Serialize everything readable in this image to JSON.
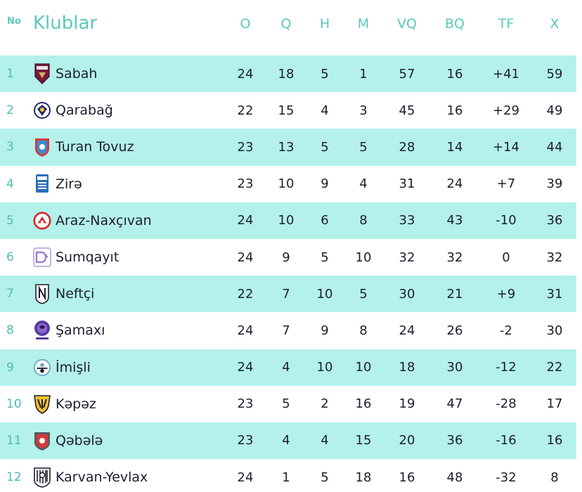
{
  "header": {
    "no": "No",
    "club": "Klublar",
    "o": "O",
    "q": "Q",
    "h": "H",
    "m": "M",
    "vq": "VQ",
    "bq": "BQ",
    "tf": "TF",
    "x": "X"
  },
  "colors": {
    "accent": "#5cc8bc",
    "row_highlight": "#b3f1ea",
    "text": "#1e1e2e"
  },
  "rows": [
    {
      "pos": "1",
      "club": "Sabah",
      "logo": "sabah-logo-icon",
      "o": "24",
      "q": "18",
      "h": "5",
      "m": "1",
      "vq": "57",
      "bq": "16",
      "tf": "+41",
      "x": "59"
    },
    {
      "pos": "2",
      "club": "Qarabağ",
      "logo": "qarabag-logo-icon",
      "o": "22",
      "q": "15",
      "h": "4",
      "m": "3",
      "vq": "45",
      "bq": "16",
      "tf": "+29",
      "x": "49"
    },
    {
      "pos": "3",
      "club": "Turan Tovuz",
      "logo": "turan-tovuz-logo-icon",
      "o": "23",
      "q": "13",
      "h": "5",
      "m": "5",
      "vq": "28",
      "bq": "14",
      "tf": "+14",
      "x": "44"
    },
    {
      "pos": "4",
      "club": "Zirə",
      "logo": "zire-logo-icon",
      "o": "23",
      "q": "10",
      "h": "9",
      "m": "4",
      "vq": "31",
      "bq": "24",
      "tf": "+7",
      "x": "39"
    },
    {
      "pos": "5",
      "club": "Araz-Naxçıvan",
      "logo": "araz-naxcivan-logo-icon",
      "o": "24",
      "q": "10",
      "h": "6",
      "m": "8",
      "vq": "33",
      "bq": "43",
      "tf": "-10",
      "x": "36"
    },
    {
      "pos": "6",
      "club": "Sumqayıt",
      "logo": "sumqayit-logo-icon",
      "o": "24",
      "q": "9",
      "h": "5",
      "m": "10",
      "vq": "32",
      "bq": "32",
      "tf": "0",
      "x": "32"
    },
    {
      "pos": "7",
      "club": "Neftçi",
      "logo": "neftci-logo-icon",
      "o": "22",
      "q": "7",
      "h": "10",
      "m": "5",
      "vq": "30",
      "bq": "21",
      "tf": "+9",
      "x": "31"
    },
    {
      "pos": "8",
      "club": "Şamaxı",
      "logo": "samaxi-logo-icon",
      "o": "24",
      "q": "7",
      "h": "9",
      "m": "8",
      "vq": "24",
      "bq": "26",
      "tf": "-2",
      "x": "30"
    },
    {
      "pos": "9",
      "club": "İmişli",
      "logo": "imisli-logo-icon",
      "o": "24",
      "q": "4",
      "h": "10",
      "m": "10",
      "vq": "18",
      "bq": "30",
      "tf": "-12",
      "x": "22"
    },
    {
      "pos": "10",
      "club": "Kəpəz",
      "logo": "kepez-logo-icon",
      "o": "23",
      "q": "5",
      "h": "2",
      "m": "16",
      "vq": "19",
      "bq": "47",
      "tf": "-28",
      "x": "17"
    },
    {
      "pos": "11",
      "club": "Qəbələ",
      "logo": "qebele-logo-icon",
      "o": "23",
      "q": "4",
      "h": "4",
      "m": "15",
      "vq": "20",
      "bq": "36",
      "tf": "-16",
      "x": "16"
    },
    {
      "pos": "12",
      "club": "Karvan-Yevlax",
      "logo": "karvan-yevlax-logo-icon",
      "o": "24",
      "q": "1",
      "h": "5",
      "m": "18",
      "vq": "16",
      "bq": "48",
      "tf": "-32",
      "x": "8"
    }
  ]
}
